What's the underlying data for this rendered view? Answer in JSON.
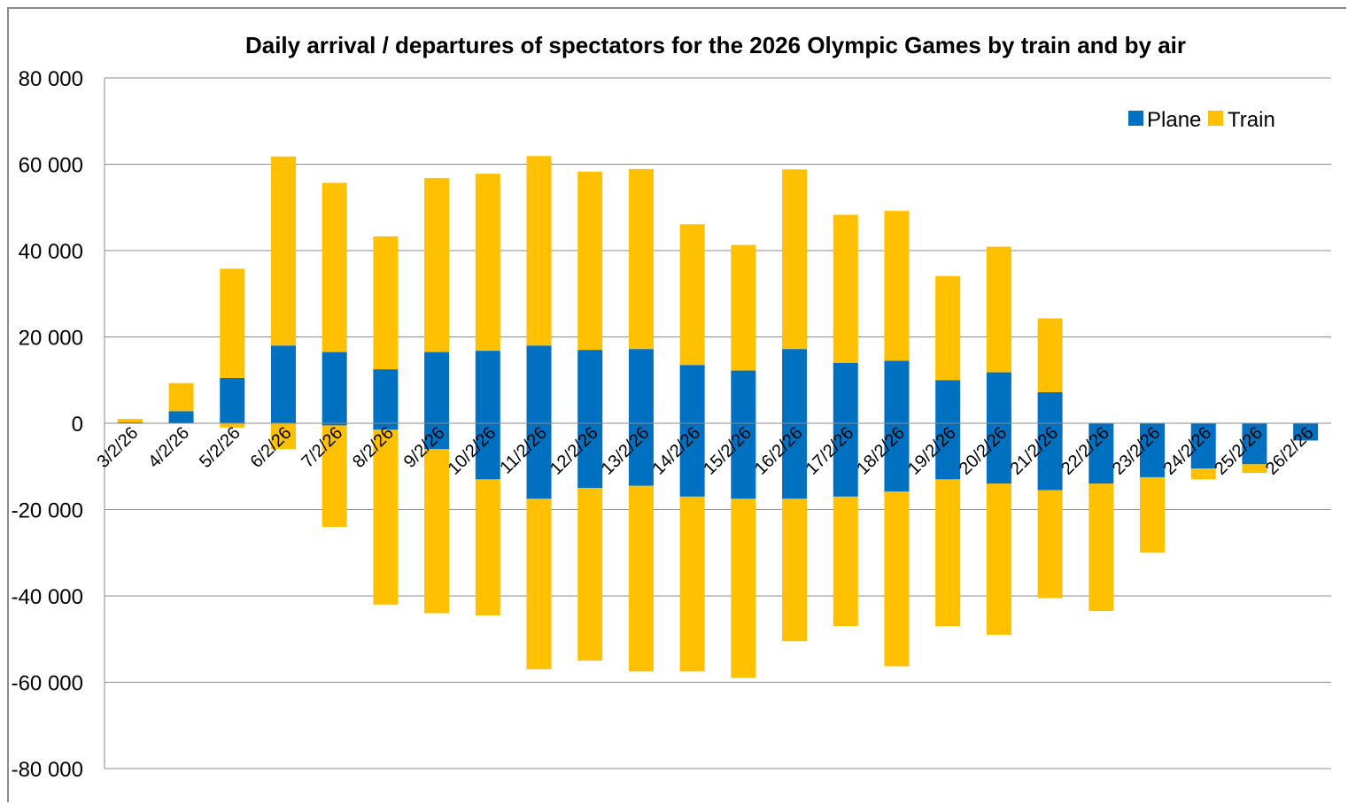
{
  "chart_data": {
    "type": "bar",
    "stacked": true,
    "title": "Daily arrival / departures of spectators for the 2026 Olympic Games by train and by air",
    "xlabel": "",
    "ylabel": "",
    "ylim": [
      -80000,
      80000
    ],
    "yticks": [
      80000,
      60000,
      40000,
      20000,
      0,
      -20000,
      -40000,
      -60000,
      -80000
    ],
    "ytick_labels": [
      "80 000",
      "60 000",
      "40 000",
      "20 000",
      "0",
      "-20 000",
      "-40 000",
      "-60 000",
      "-80 000"
    ],
    "grid": true,
    "legend_position": "top-right",
    "categories": [
      "3/2/26",
      "4/2/26",
      "5/2/26",
      "6/2/26",
      "7/2/26",
      "8/2/26",
      "9/2/26",
      "10/2/26",
      "11/2/26",
      "12/2/26",
      "13/2/26",
      "14/2/26",
      "15/2/26",
      "16/2/26",
      "17/2/26",
      "18/2/26",
      "19/2/26",
      "20/2/26",
      "21/2/26",
      "22/2/26",
      "23/2/26",
      "24/2/26",
      "25/2/26",
      "26/2/26"
    ],
    "series": [
      {
        "name": "Plane",
        "color": "#0070C0",
        "arrivals": [
          200,
          2800,
          10500,
          18000,
          16500,
          12500,
          16500,
          16800,
          18000,
          17000,
          17200,
          13500,
          12200,
          17200,
          14000,
          14500,
          10000,
          11800,
          7200,
          0,
          0,
          0,
          0,
          0
        ],
        "departures": [
          0,
          0,
          0,
          0,
          -500,
          -1500,
          -6000,
          -13000,
          -17500,
          -15000,
          -14500,
          -17000,
          -17500,
          -17500,
          -17000,
          -15800,
          -13000,
          -14000,
          -15500,
          -14000,
          -12500,
          -10500,
          -9500,
          -4000
        ]
      },
      {
        "name": "Train",
        "color": "#FFC000",
        "arrivals": [
          800,
          6500,
          25300,
          43800,
          39200,
          30800,
          40300,
          41000,
          43900,
          41300,
          41700,
          32600,
          29100,
          41600,
          34300,
          34700,
          24100,
          29100,
          17100,
          0,
          0,
          0,
          0,
          0
        ],
        "departures": [
          0,
          0,
          -1000,
          -6000,
          -23500,
          -40500,
          -38000,
          -31500,
          -39500,
          -40000,
          -43000,
          -40500,
          -41500,
          -33000,
          -30000,
          -40500,
          -34000,
          -35000,
          -25000,
          -29500,
          -17500,
          -2500,
          -2000,
          0
        ]
      }
    ]
  }
}
